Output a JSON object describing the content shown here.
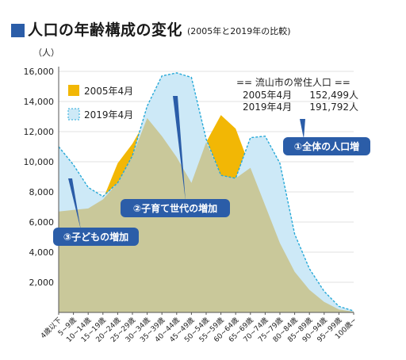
{
  "title": "人口の年齢構成の変化",
  "subtitle": "(2005年と2019年の比較)",
  "chart_data": {
    "type": "area",
    "y_unit": "（人）",
    "ylim": [
      0,
      16000
    ],
    "y_ticks": [
      "2,000",
      "4,000",
      "6,000",
      "8,000",
      "10,000",
      "12,000",
      "14,000",
      "16,000"
    ],
    "categories": [
      "4歳以下",
      "5~9歳",
      "10~14歳",
      "15~19歳",
      "20~24歳",
      "25~29歳",
      "30~34歳",
      "35~39歳",
      "40~44歳",
      "45~49歳",
      "50~54歳",
      "55~59歳",
      "60~64歳",
      "65~69歳",
      "70~74歳",
      "75~79歳",
      "80~84歳",
      "85~89歳",
      "90~94歳",
      "95~99歳",
      "100歳~"
    ],
    "series": [
      {
        "name": "2005年4月",
        "color": "#f2b705",
        "values": [
          6700,
          6800,
          6900,
          7500,
          9900,
          11200,
          12900,
          11700,
          10300,
          8600,
          11300,
          13100,
          12200,
          9600,
          7100,
          4600,
          2700,
          1500,
          700,
          200,
          50
        ]
      },
      {
        "name": "2019年4月",
        "color": "#cde9f7",
        "line_color": "#27a9d8",
        "values": [
          11000,
          9800,
          8300,
          7700,
          8600,
          10400,
          13700,
          15700,
          15900,
          15600,
          11500,
          9100,
          8900,
          11600,
          11700,
          9900,
          5200,
          2900,
          1400,
          400,
          100
        ]
      }
    ],
    "annotation_header": "== 流山市の常住人口 ==",
    "annotation_rows": [
      {
        "label": "2005年4月",
        "value": "152,499人"
      },
      {
        "label": "2019年4月",
        "value": "191,792人"
      }
    ],
    "callouts": [
      "①全体の人口増",
      "②子育て世代の増加",
      "③子どもの増加"
    ],
    "grid": true,
    "legend_position": "top-left"
  },
  "colors": {
    "overlap": "#c9c89a",
    "callout_bg": "#2b5da8",
    "callout_text": "#ffffff",
    "axis": "#555555",
    "grid": "#d8d8d8"
  }
}
